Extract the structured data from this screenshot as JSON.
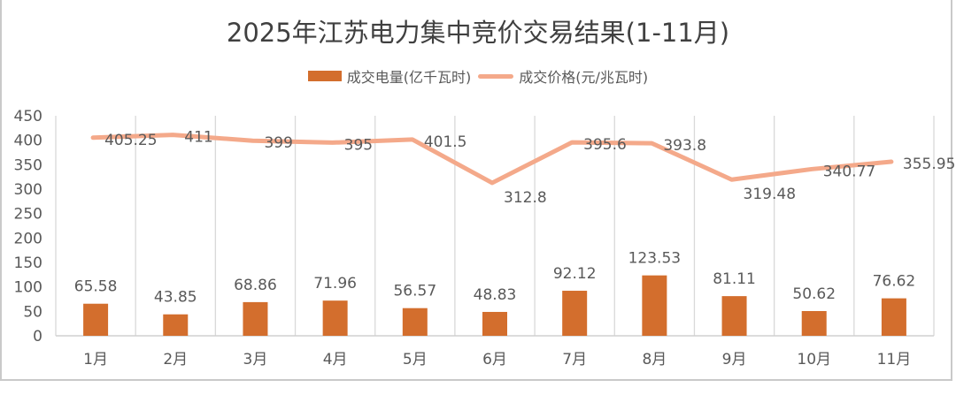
{
  "title": "2025年江苏电力集中竞价交易结果(1-11月)",
  "legend": [
    {
      "name": "成交电量(亿千瓦时)",
      "type": "bar",
      "color": "#D36E2D"
    },
    {
      "name": "成交价格(元/兆瓦时)",
      "type": "line",
      "color": "#F4A98A"
    }
  ],
  "chart_data": {
    "type": "bar",
    "title": "2025年江苏电力集中竞价交易结果(1-11月)",
    "xlabel": "",
    "ylabel": "",
    "ylim": [
      0,
      450
    ],
    "yticks": [
      0,
      50,
      100,
      150,
      200,
      250,
      300,
      350,
      400,
      450
    ],
    "grid": "vertical",
    "legend_position": "top",
    "categories": [
      "1月",
      "2月",
      "3月",
      "4月",
      "5月",
      "6月",
      "7月",
      "8月",
      "9月",
      "10月",
      "11月"
    ],
    "series": [
      {
        "name": "成交电量(亿千瓦时)",
        "type": "bar",
        "color": "#D36E2D",
        "values": [
          65.58,
          43.85,
          68.86,
          71.96,
          56.57,
          48.83,
          92.12,
          123.53,
          81.11,
          50.62,
          76.62
        ],
        "labels": [
          "65.58",
          "43.85",
          "68.86",
          "71.96",
          "56.57",
          "48.83",
          "92.12",
          "123.53",
          "81.11",
          "50.62",
          "76.62"
        ]
      },
      {
        "name": "成交价格(元/兆瓦时)",
        "type": "line",
        "color": "#F4A98A",
        "values": [
          405.25,
          411,
          399,
          395,
          401.5,
          312.8,
          395.6,
          393.8,
          319.48,
          340.77,
          355.95
        ],
        "labels": [
          "405.25",
          "411",
          "399",
          "395",
          "401.5",
          "312.8",
          "395.6",
          "393.8",
          "319.48",
          "340.77",
          "355.95"
        ]
      }
    ]
  }
}
